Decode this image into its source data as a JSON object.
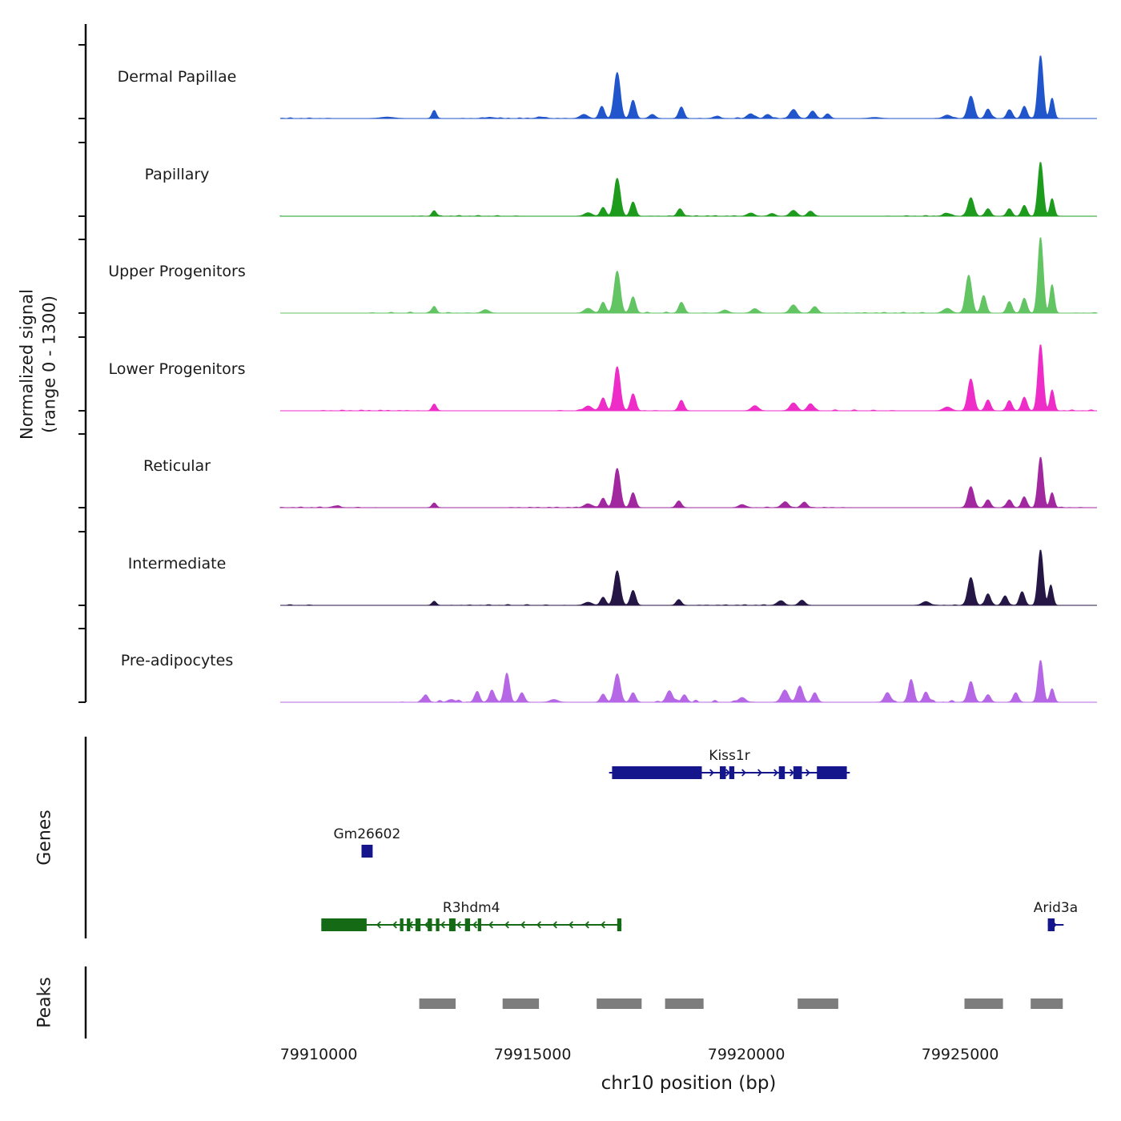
{
  "chart_data": {
    "type": "area",
    "title": "",
    "xlabel": "chr10 position (bp)",
    "ylabel_lines": [
      "Normalized signal",
      "(range 0 - 1300)"
    ],
    "genes_section_label": "Genes",
    "peaks_section_label": "Peaks",
    "chrom": "chr10",
    "x_range_bp": [
      79909100,
      79928200
    ],
    "signal_range": [
      0,
      1300
    ],
    "x_ticks_bp": [
      79910000,
      79915000,
      79920000,
      79925000
    ],
    "tracks": [
      {
        "label": "Dermal Papillae",
        "color": "#2155cc",
        "noise": 14,
        "peaks": [
          [
            79911600,
            20,
            150
          ],
          [
            79912700,
            120,
            50
          ],
          [
            79914000,
            15,
            120
          ],
          [
            79915200,
            20,
            100
          ],
          [
            79916200,
            60,
            90
          ],
          [
            79916620,
            180,
            60
          ],
          [
            79916980,
            680,
            70
          ],
          [
            79917350,
            270,
            60
          ],
          [
            79917800,
            60,
            70
          ],
          [
            79918480,
            170,
            60
          ],
          [
            79919300,
            30,
            80
          ],
          [
            79920100,
            70,
            80
          ],
          [
            79920500,
            60,
            70
          ],
          [
            79921100,
            130,
            80
          ],
          [
            79921550,
            110,
            70
          ],
          [
            79921900,
            70,
            60
          ],
          [
            79923000,
            15,
            120
          ],
          [
            79924700,
            50,
            90
          ],
          [
            79925250,
            330,
            70
          ],
          [
            79925650,
            140,
            60
          ],
          [
            79926150,
            130,
            60
          ],
          [
            79926500,
            180,
            60
          ],
          [
            79926880,
            930,
            60
          ],
          [
            79927150,
            300,
            50
          ]
        ]
      },
      {
        "label": "Papillary",
        "color": "#1d9b1d",
        "noise": 12,
        "peaks": [
          [
            79912700,
            80,
            50
          ],
          [
            79916300,
            50,
            90
          ],
          [
            79916650,
            130,
            60
          ],
          [
            79916980,
            560,
            70
          ],
          [
            79917350,
            210,
            60
          ],
          [
            79918450,
            110,
            60
          ],
          [
            79920100,
            45,
            80
          ],
          [
            79920600,
            40,
            70
          ],
          [
            79921100,
            85,
            80
          ],
          [
            79921500,
            75,
            70
          ],
          [
            79924700,
            40,
            90
          ],
          [
            79925250,
            270,
            70
          ],
          [
            79925650,
            110,
            60
          ],
          [
            79926150,
            110,
            60
          ],
          [
            79926500,
            160,
            60
          ],
          [
            79926880,
            800,
            60
          ],
          [
            79927150,
            260,
            50
          ]
        ]
      },
      {
        "label": "Upper Progenitors",
        "color": "#62c462",
        "noise": 15,
        "peaks": [
          [
            79912700,
            100,
            50
          ],
          [
            79913900,
            50,
            80
          ],
          [
            79916300,
            70,
            90
          ],
          [
            79916650,
            160,
            60
          ],
          [
            79916980,
            620,
            70
          ],
          [
            79917350,
            240,
            60
          ],
          [
            79918480,
            160,
            60
          ],
          [
            79919500,
            45,
            80
          ],
          [
            79920200,
            65,
            80
          ],
          [
            79921100,
            120,
            80
          ],
          [
            79921600,
            95,
            70
          ],
          [
            79924700,
            70,
            90
          ],
          [
            79925200,
            560,
            70
          ],
          [
            79925550,
            260,
            60
          ],
          [
            79926150,
            170,
            60
          ],
          [
            79926500,
            220,
            60
          ],
          [
            79926880,
            1120,
            60
          ],
          [
            79927150,
            420,
            50
          ]
        ]
      },
      {
        "label": "Lower Progenitors",
        "color": "#ee2cc8",
        "noise": 14,
        "peaks": [
          [
            79912700,
            100,
            50
          ],
          [
            79916300,
            70,
            90
          ],
          [
            79916650,
            190,
            60
          ],
          [
            79916980,
            640,
            70
          ],
          [
            79917350,
            250,
            60
          ],
          [
            79918480,
            155,
            60
          ],
          [
            79920200,
            75,
            80
          ],
          [
            79921100,
            115,
            80
          ],
          [
            79921500,
            105,
            70
          ],
          [
            79924700,
            55,
            90
          ],
          [
            79925250,
            470,
            70
          ],
          [
            79925650,
            160,
            60
          ],
          [
            79926150,
            150,
            60
          ],
          [
            79926500,
            200,
            60
          ],
          [
            79926880,
            980,
            60
          ],
          [
            79927150,
            300,
            50
          ]
        ]
      },
      {
        "label": "Reticular",
        "color": "#a1289e",
        "noise": 12,
        "peaks": [
          [
            79910400,
            25,
            80
          ],
          [
            79912700,
            70,
            50
          ],
          [
            79916300,
            55,
            90
          ],
          [
            79916650,
            140,
            60
          ],
          [
            79916980,
            580,
            70
          ],
          [
            79917350,
            220,
            60
          ],
          [
            79918420,
            100,
            60
          ],
          [
            79919900,
            45,
            80
          ],
          [
            79920900,
            80,
            80
          ],
          [
            79921350,
            75,
            70
          ],
          [
            79925250,
            310,
            70
          ],
          [
            79925650,
            115,
            60
          ],
          [
            79926150,
            115,
            60
          ],
          [
            79926500,
            150,
            60
          ],
          [
            79926880,
            740,
            60
          ],
          [
            79927150,
            220,
            50
          ]
        ]
      },
      {
        "label": "Intermediate",
        "color": "#251646",
        "noise": 12,
        "peaks": [
          [
            79912700,
            60,
            50
          ],
          [
            79916300,
            45,
            90
          ],
          [
            79916650,
            120,
            60
          ],
          [
            79916980,
            510,
            70
          ],
          [
            79917350,
            220,
            60
          ],
          [
            79918420,
            85,
            60
          ],
          [
            79920800,
            65,
            80
          ],
          [
            79921300,
            75,
            70
          ],
          [
            79924200,
            55,
            90
          ],
          [
            79925250,
            410,
            70
          ],
          [
            79925650,
            170,
            60
          ],
          [
            79926050,
            140,
            60
          ],
          [
            79926450,
            200,
            60
          ],
          [
            79926880,
            820,
            60
          ],
          [
            79927120,
            300,
            50
          ]
        ]
      },
      {
        "label": "Pre-adipocytes",
        "color": "#b667e6",
        "noise": 30,
        "peaks": [
          [
            79912500,
            110,
            60
          ],
          [
            79913100,
            40,
            80
          ],
          [
            79913700,
            140,
            60
          ],
          [
            79914050,
            180,
            60
          ],
          [
            79914400,
            430,
            60
          ],
          [
            79914750,
            140,
            60
          ],
          [
            79915500,
            40,
            90
          ],
          [
            79916650,
            120,
            60
          ],
          [
            79916980,
            420,
            70
          ],
          [
            79917350,
            140,
            60
          ],
          [
            79918200,
            170,
            70
          ],
          [
            79918550,
            110,
            60
          ],
          [
            79919900,
            70,
            80
          ],
          [
            79920900,
            180,
            80
          ],
          [
            79921250,
            240,
            70
          ],
          [
            79921600,
            140,
            60
          ],
          [
            79923300,
            140,
            70
          ],
          [
            79923850,
            330,
            60
          ],
          [
            79924200,
            150,
            60
          ],
          [
            79925250,
            290,
            70
          ],
          [
            79925650,
            110,
            60
          ],
          [
            79926300,
            140,
            60
          ],
          [
            79926880,
            620,
            60
          ],
          [
            79927150,
            200,
            50
          ]
        ]
      }
    ],
    "genes": [
      {
        "name": "Kiss1r",
        "strand": "+",
        "color": "#16168c",
        "row": 0,
        "start": 79916790,
        "end": 79922420,
        "exons": [
          [
            79916860,
            79918960
          ],
          [
            79919380,
            79919520
          ],
          [
            79919600,
            79919720
          ],
          [
            79920760,
            79920900
          ],
          [
            79921100,
            79921300
          ],
          [
            79921650,
            79922350
          ]
        ]
      },
      {
        "name": "Gm26602",
        "strand": ".",
        "color": "#16168c",
        "row": 1,
        "start": 79911000,
        "end": 79911260,
        "exons": [
          [
            79911000,
            79911260
          ]
        ]
      },
      {
        "name": "R3hdm4",
        "strand": "-",
        "color": "#156b15",
        "row": 2,
        "start": 79910060,
        "end": 79917080,
        "exons": [
          [
            79910060,
            79911120
          ],
          [
            79911900,
            79911980
          ],
          [
            79912060,
            79912140
          ],
          [
            79912260,
            79912380
          ],
          [
            79912550,
            79912650
          ],
          [
            79912740,
            79912820
          ],
          [
            79913050,
            79913200
          ],
          [
            79913420,
            79913540
          ],
          [
            79913720,
            79913800
          ],
          [
            79916980,
            79917080
          ]
        ]
      },
      {
        "name": "Arid3a",
        "strand": "+",
        "color": "#16168c",
        "row": 2,
        "start": 79927050,
        "end": 79927420,
        "exons": [
          [
            79927050,
            79927210
          ]
        ]
      }
    ],
    "peak_regions_bp": [
      [
        79912350,
        79913200
      ],
      [
        79914300,
        79915150
      ],
      [
        79916500,
        79917550
      ],
      [
        79918100,
        79919000
      ],
      [
        79921200,
        79922150
      ],
      [
        79925100,
        79926000
      ],
      [
        79926650,
        79927400
      ]
    ],
    "peak_color": "#7d7d7d"
  }
}
